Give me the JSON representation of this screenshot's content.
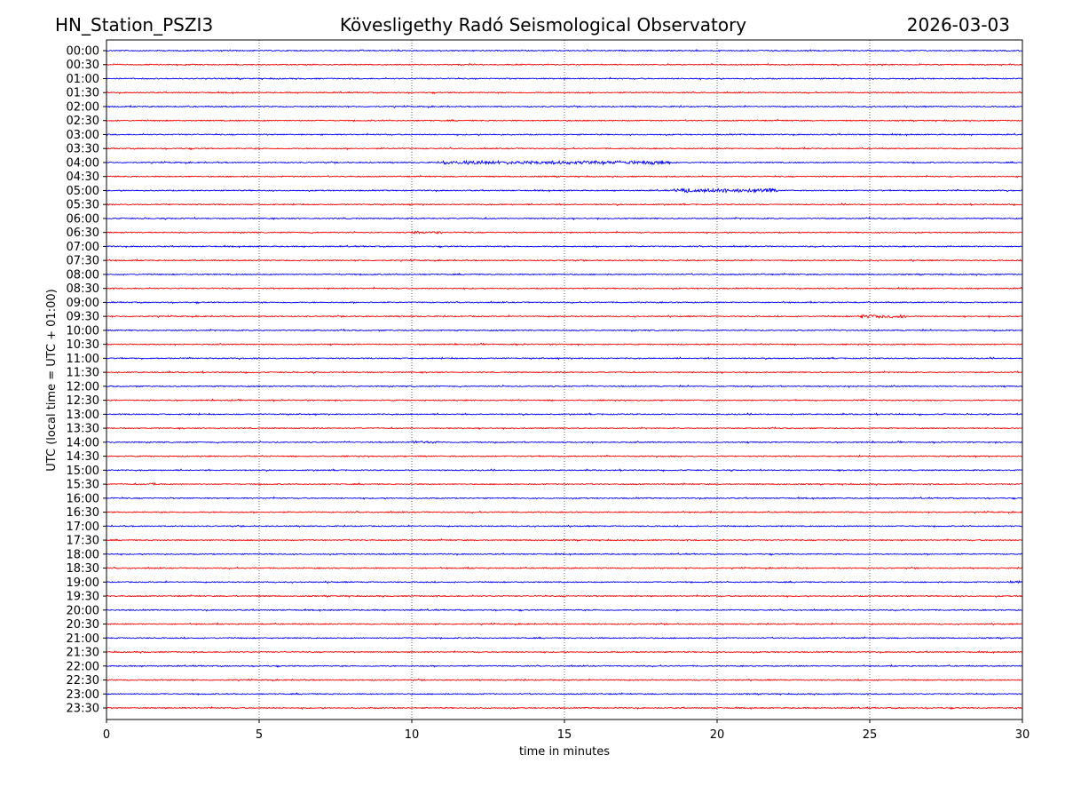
{
  "header": {
    "station": "HN_Station_PSZI3",
    "observatory": "Kövesligethy Radó Seismological Observatory",
    "date": "2026-03-03"
  },
  "chart_data": {
    "type": "line",
    "title": "Kövesligethy Radó Seismological Observatory",
    "xlabel": "time in minutes",
    "ylabel": "UTC (local time = UTC + 01:00)",
    "xlim": [
      0,
      30
    ],
    "xticks": [
      "0",
      "5",
      "10",
      "15",
      "20",
      "25",
      "30"
    ],
    "grid": "vertical dotted lines at each x tick",
    "row_labels": [
      "00:00",
      "00:30",
      "01:00",
      "01:30",
      "02:00",
      "02:30",
      "03:00",
      "03:30",
      "04:00",
      "04:30",
      "05:00",
      "05:30",
      "06:00",
      "06:30",
      "07:00",
      "07:30",
      "08:00",
      "08:30",
      "09:00",
      "09:30",
      "10:00",
      "10:30",
      "11:00",
      "11:30",
      "12:00",
      "12:30",
      "13:00",
      "13:30",
      "14:00",
      "14:30",
      "15:00",
      "15:30",
      "16:00",
      "16:30",
      "17:00",
      "17:30",
      "18:00",
      "18:30",
      "19:00",
      "19:30",
      "20:00",
      "20:30",
      "21:00",
      "21:30",
      "22:00",
      "22:30",
      "23:00",
      "23:30"
    ],
    "series_colors": [
      "#0000ff",
      "#ff0000"
    ],
    "noise_level": 1,
    "events": [
      {
        "row": "04:00",
        "start_min": 11.0,
        "end_min": 18.5,
        "amplitude": 2.2
      },
      {
        "row": "05:00",
        "start_min": 18.6,
        "end_min": 22.0,
        "amplitude": 2.6
      },
      {
        "row": "06:30",
        "start_min": 10.0,
        "end_min": 11.0,
        "amplitude": 1.8
      },
      {
        "row": "09:30",
        "start_min": 24.6,
        "end_min": 26.2,
        "amplitude": 2.2
      },
      {
        "row": "14:00",
        "start_min": 10.0,
        "end_min": 10.9,
        "amplitude": 1.5
      },
      {
        "row": "15:30",
        "start_min": 1.4,
        "end_min": 1.9,
        "amplitude": 1.5
      },
      {
        "row": "19:00",
        "start_min": 29.5,
        "end_min": 30.0,
        "amplitude": 1.5
      }
    ]
  }
}
